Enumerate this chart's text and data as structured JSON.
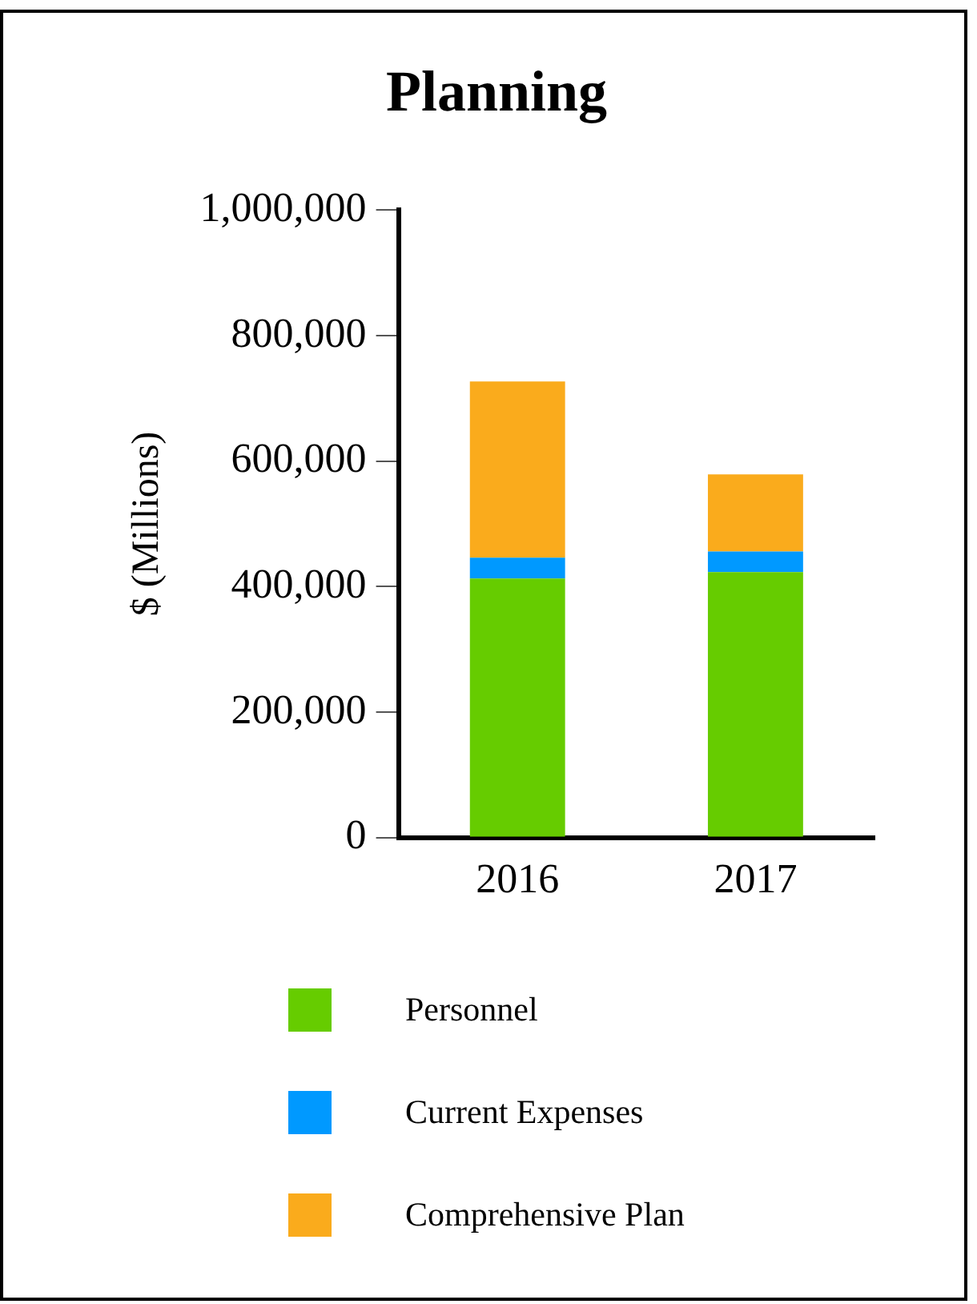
{
  "chart_data": {
    "type": "bar",
    "title": "Planning",
    "ylabel": "$ (Millions)",
    "categories": [
      "2016",
      "2017"
    ],
    "stacked": true,
    "legend": "bottom",
    "grid": false,
    "series": [
      {
        "name": "Personnel",
        "color": "#66cc00",
        "values": [
          413000,
          423000
        ]
      },
      {
        "name": "Current Expenses",
        "color": "#0099ff",
        "values": [
          33000,
          33000
        ]
      },
      {
        "name": "Comprehensive Plan",
        "color": "#faab1c",
        "values": [
          281000,
          123000
        ]
      }
    ],
    "ylim": [
      0,
      1000000
    ],
    "yticks": [
      0,
      {
        "value": 200000,
        "label": "200,000"
      },
      {
        "value": 400000,
        "label": "400,000"
      },
      {
        "value": 600000,
        "label": "600,000"
      },
      {
        "value": 800000,
        "label": "800,000"
      },
      {
        "value": 1000000,
        "label": "1,000,000"
      }
    ]
  }
}
